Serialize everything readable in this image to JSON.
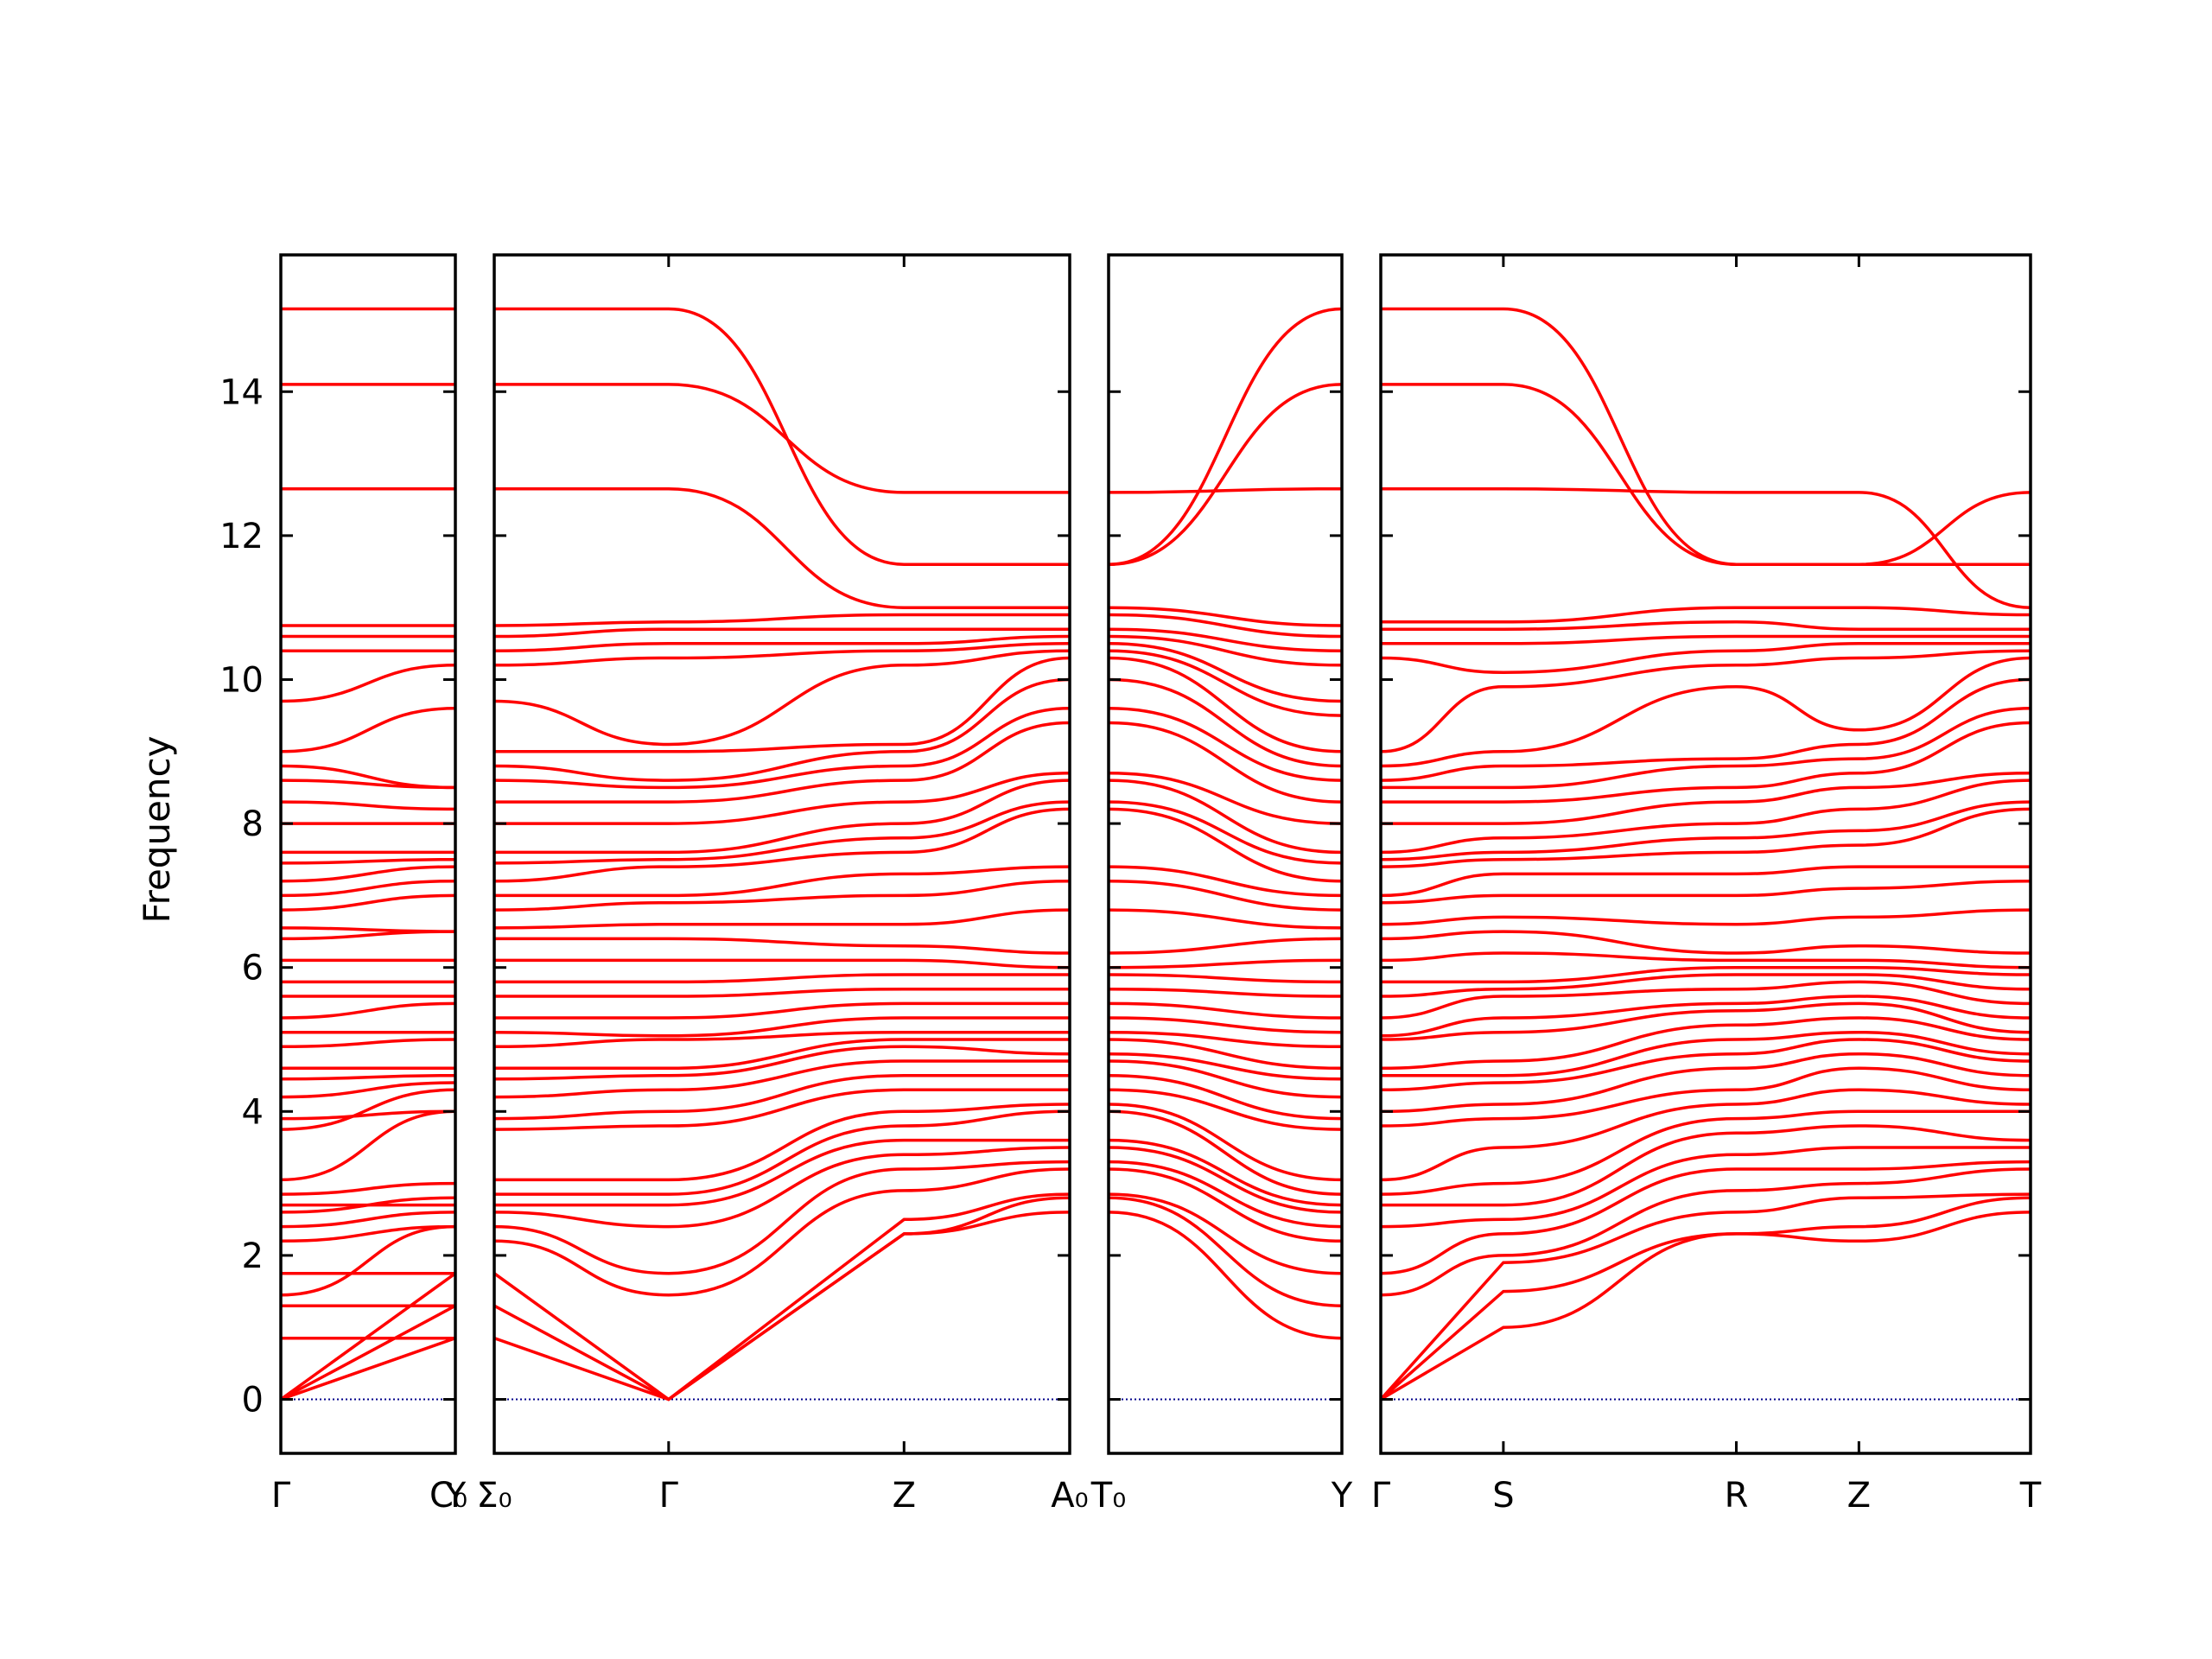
{
  "chart_data": {
    "type": "line",
    "title": "",
    "ylabel": "Frequency",
    "ylim": [
      -0.75,
      15.9
    ],
    "yticks": [
      0,
      2,
      4,
      6,
      8,
      10,
      12,
      14
    ],
    "series_color": "#ff0000",
    "zero_line_color": "#00008b",
    "band_count_note": "",
    "panels": [
      {
        "x_range": [
          0,
          1
        ],
        "labels": [
          {
            "x": 0,
            "text": "Γ"
          },
          {
            "x": 1,
            "text": "Y"
          },
          {
            "x": 1,
            "text": "C₀"
          }
        ],
        "band_values": {
          "start": [
            0,
            0,
            0,
            0.85,
            1.3,
            1.45,
            1.75,
            2.2,
            2.4,
            2.6,
            2.7,
            2.85,
            3.05,
            3.75,
            3.9,
            4.2,
            4.45,
            4.6,
            4.9,
            5.1,
            5.3,
            5.6,
            5.8,
            6.1,
            6.4,
            6.55,
            6.8,
            7.0,
            7.2,
            7.45,
            7.6,
            8.0,
            8.3,
            8.6,
            8.8,
            9.0,
            9.7,
            10.4,
            10.6,
            10.75,
            12.65,
            14.1,
            15.15
          ],
          "end": [
            0.85,
            1.3,
            1.75,
            0.85,
            1.3,
            2.4,
            1.75,
            2.4,
            2.6,
            2.8,
            2.7,
            3.0,
            4.0,
            4.3,
            4.0,
            4.4,
            4.5,
            4.6,
            5.0,
            5.1,
            5.5,
            5.6,
            5.8,
            6.1,
            6.5,
            6.5,
            7.0,
            7.2,
            7.4,
            7.5,
            7.6,
            8.0,
            8.2,
            8.5,
            8.5,
            9.6,
            10.2,
            10.4,
            10.6,
            10.75,
            12.65,
            14.1,
            15.15
          ]
        }
      },
      {
        "x_range": [
          0,
          3.3
        ],
        "labels": [
          {
            "x": 0,
            "text": "Σ₀"
          },
          {
            "x": 1,
            "text": "Γ"
          },
          {
            "x": 2.35,
            "text": "Z"
          },
          {
            "x": 3.3,
            "text": "A₀"
          }
        ],
        "band_values": {
          "sigma0": [
            0.85,
            1.3,
            1.75,
            2.2,
            2.4,
            2.6,
            2.7,
            2.85,
            3.05,
            3.75,
            3.9,
            4.2,
            4.45,
            4.6,
            4.9,
            5.1,
            5.3,
            5.6,
            5.8,
            6.1,
            6.4,
            6.55,
            6.8,
            7.0,
            7.2,
            7.45,
            7.6,
            8.0,
            8.3,
            8.6,
            8.8,
            9.0,
            9.7,
            10.2,
            10.4,
            10.6,
            10.75,
            12.65,
            14.1,
            15.15
          ],
          "gamma": [
            0,
            0,
            0,
            1.45,
            1.75,
            2.4,
            2.7,
            2.85,
            3.05,
            3.8,
            4.0,
            4.3,
            4.5,
            4.6,
            5.0,
            5.05,
            5.3,
            5.6,
            5.8,
            6.1,
            6.4,
            6.6,
            6.9,
            7.0,
            7.4,
            7.5,
            7.6,
            8.0,
            8.3,
            8.5,
            8.6,
            9.0,
            9.1,
            10.3,
            10.5,
            10.7,
            10.8,
            12.65,
            14.1,
            15.15
          ],
          "z": [
            2.3,
            2.3,
            2.5,
            2.9,
            3.2,
            3.4,
            3.6,
            3.8,
            4.0,
            4.3,
            4.5,
            4.7,
            4.9,
            5.0,
            5.1,
            5.3,
            5.5,
            5.7,
            5.9,
            6.1,
            6.3,
            6.6,
            7.0,
            7.3,
            7.6,
            7.8,
            8.0,
            8.3,
            8.6,
            8.8,
            9.0,
            9.1,
            10.2,
            10.4,
            10.5,
            10.7,
            10.9,
            11.0,
            12.6,
            11.6,
            11.6
          ],
          "a0": [
            2.6,
            2.8,
            2.85,
            3.2,
            3.3,
            3.5,
            3.6,
            4.0,
            4.1,
            4.3,
            4.5,
            4.7,
            4.8,
            5.0,
            5.1,
            5.3,
            5.5,
            5.7,
            5.9,
            6.0,
            6.2,
            6.8,
            7.2,
            7.4,
            8.2,
            8.3,
            8.6,
            8.7,
            9.4,
            9.6,
            10.0,
            10.3,
            10.4,
            10.5,
            10.6,
            10.7,
            10.9,
            11.0,
            12.6,
            11.6,
            11.6
          ]
        }
      },
      {
        "x_range": [
          0,
          1.35
        ],
        "labels": [
          {
            "x": 0,
            "text": "T₀"
          },
          {
            "x": 1.35,
            "text": "Y"
          }
        ],
        "band_values": {
          "t0": [
            2.6,
            2.8,
            2.85,
            3.2,
            3.3,
            3.5,
            3.6,
            4.0,
            4.1,
            4.3,
            4.5,
            4.7,
            4.8,
            5.0,
            5.1,
            5.3,
            5.5,
            5.7,
            5.9,
            6.0,
            6.2,
            6.8,
            7.2,
            7.4,
            8.2,
            8.3,
            8.6,
            8.7,
            9.4,
            9.6,
            10.0,
            10.3,
            10.4,
            10.5,
            10.6,
            10.7,
            10.9,
            11.0,
            12.6,
            11.6,
            11.6
          ],
          "y": [
            0.85,
            1.3,
            1.75,
            2.2,
            2.4,
            2.6,
            2.7,
            2.85,
            3.05,
            3.75,
            3.9,
            4.2,
            4.45,
            4.6,
            4.9,
            5.1,
            5.3,
            5.6,
            5.8,
            6.1,
            6.4,
            6.55,
            6.8,
            7.0,
            7.2,
            7.45,
            7.6,
            8.0,
            8.3,
            8.6,
            8.8,
            9.0,
            9.5,
            9.7,
            10.2,
            10.4,
            10.6,
            10.75,
            12.65,
            14.1,
            15.15
          ]
        }
      },
      {
        "x_range": [
          0,
          5.3
        ],
        "labels": [
          {
            "x": 0,
            "text": "Γ"
          },
          {
            "x": 1,
            "text": "S"
          },
          {
            "x": 2.9,
            "text": "R"
          },
          {
            "x": 3.9,
            "text": "Z"
          },
          {
            "x": 5.3,
            "text": "T"
          }
        ],
        "band_values": {
          "gamma": [
            0,
            0,
            0,
            1.45,
            1.75,
            2.4,
            2.7,
            2.85,
            3.05,
            3.8,
            4.0,
            4.3,
            4.5,
            4.6,
            5.0,
            5.05,
            5.3,
            5.6,
            5.8,
            6.1,
            6.4,
            6.6,
            6.9,
            7.0,
            7.4,
            7.5,
            7.6,
            8.0,
            8.3,
            8.5,
            8.6,
            8.8,
            9.0,
            10.3,
            10.5,
            10.7,
            10.8,
            12.65,
            14.1,
            15.15
          ],
          "s": [
            1.0,
            1.5,
            1.9,
            2.0,
            2.3,
            2.5,
            2.7,
            3.0,
            3.5,
            3.9,
            4.1,
            4.4,
            4.5,
            4.7,
            5.1,
            5.3,
            5.6,
            5.7,
            5.8,
            6.2,
            6.5,
            6.7,
            7.0,
            7.3,
            7.5,
            7.6,
            7.8,
            8.0,
            8.3,
            8.5,
            8.8,
            9.0,
            9.9,
            10.1,
            10.5,
            10.7,
            10.8,
            12.65,
            14.1,
            15.15
          ],
          "r": [
            2.3,
            2.3,
            2.6,
            2.9,
            3.2,
            3.4,
            3.7,
            3.9,
            4.1,
            4.3,
            4.6,
            4.8,
            5.0,
            5.2,
            5.4,
            5.5,
            5.7,
            5.9,
            6.0,
            6.1,
            6.2,
            6.6,
            7.0,
            7.3,
            7.6,
            7.8,
            8.0,
            8.3,
            8.5,
            8.8,
            8.9,
            9.9,
            10.2,
            10.4,
            10.6,
            10.8,
            11.0,
            12.6,
            11.6,
            11.6
          ],
          "z": [
            2.2,
            2.4,
            2.8,
            3.0,
            3.2,
            3.5,
            3.8,
            4.0,
            4.3,
            4.6,
            4.8,
            5.0,
            5.1,
            5.3,
            5.5,
            5.6,
            5.8,
            5.9,
            6.0,
            6.1,
            6.3,
            6.7,
            7.1,
            7.4,
            7.7,
            7.9,
            8.2,
            8.5,
            8.7,
            8.9,
            9.1,
            9.3,
            10.3,
            10.5,
            10.6,
            10.7,
            11.0,
            12.6,
            11.6,
            11.6
          ],
          "t": [
            2.6,
            2.8,
            2.85,
            3.2,
            3.3,
            3.5,
            3.6,
            4.0,
            4.1,
            4.3,
            4.5,
            4.7,
            4.8,
            5.0,
            5.1,
            5.3,
            5.5,
            5.7,
            5.9,
            6.0,
            6.2,
            6.8,
            7.2,
            7.4,
            8.2,
            8.3,
            8.6,
            8.7,
            9.4,
            9.6,
            10.0,
            10.3,
            10.4,
            10.5,
            10.6,
            10.7,
            10.9,
            11.0,
            12.6,
            11.6,
            11.6
          ]
        }
      }
    ]
  }
}
